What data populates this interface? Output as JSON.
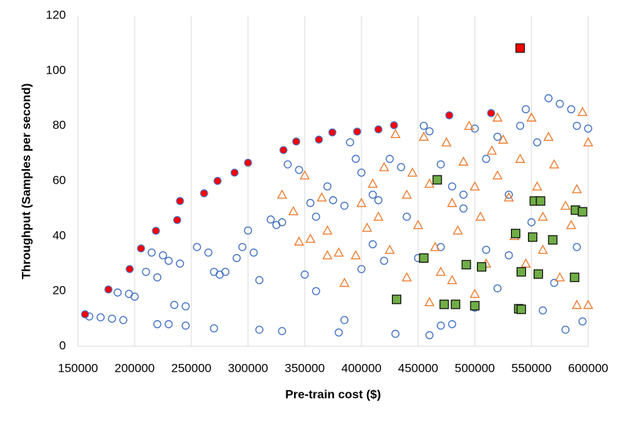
{
  "chart_data": {
    "type": "scatter",
    "x_label": "Pre-train cost ($)",
    "y_label": "Throughput (Samples per second)",
    "xlim": [
      150000,
      600000
    ],
    "xticks": [
      150000,
      200000,
      250000,
      300000,
      350000,
      400000,
      450000,
      500000,
      550000,
      600000
    ],
    "ylim": [
      0,
      120
    ],
    "yticks": [
      0,
      20,
      40,
      60,
      80,
      100,
      120
    ],
    "grid": "x",
    "series": [
      {
        "color": "#4472c4",
        "marker": "circle",
        "filled": false,
        "x": [
          160000,
          170000,
          180000,
          190000,
          185000,
          195000,
          200000,
          210000,
          215000,
          225000,
          220000,
          230000,
          240000,
          235000,
          245000,
          220000,
          230000,
          245000,
          255000,
          265000,
          270000,
          275000,
          280000,
          290000,
          295000,
          300000,
          305000,
          310000,
          320000,
          325000,
          330000,
          335000,
          345000,
          355000,
          360000,
          370000,
          375000,
          385000,
          390000,
          395000,
          400000,
          410000,
          415000,
          420000,
          425000,
          435000,
          440000,
          455000,
          460000,
          470000,
          480000,
          490000,
          500000,
          510000,
          520000,
          530000,
          540000,
          545000,
          555000,
          565000,
          575000,
          585000,
          590000,
          600000,
          460000,
          470000,
          480000,
          500000,
          520000,
          560000,
          580000,
          595000,
          270000,
          310000,
          330000,
          380000,
          385000,
          430000,
          350000,
          360000,
          400000,
          410000,
          450000,
          470000,
          490000,
          510000,
          530000,
          550000,
          570000,
          590000
        ],
        "values": [
          10.8,
          10.5,
          10,
          9.5,
          19.5,
          19,
          18,
          27,
          34,
          33,
          25,
          31,
          30,
          15,
          14.5,
          8,
          8,
          7.5,
          36,
          34,
          27,
          26,
          27,
          32,
          36,
          42,
          34,
          24,
          46,
          44,
          45,
          66,
          64,
          52,
          47,
          58,
          53,
          51,
          74,
          68,
          63,
          55,
          53,
          31,
          68,
          65,
          47,
          80,
          78,
          66,
          58,
          55,
          79,
          68,
          76,
          55,
          80,
          86,
          74,
          90,
          88,
          86,
          80,
          79,
          4,
          7.5,
          8,
          14,
          21,
          13,
          6,
          9,
          6.5,
          6,
          5.5,
          5,
          9.5,
          4.5,
          26,
          20,
          28,
          37,
          32,
          36,
          50,
          35,
          33,
          45,
          23,
          36
        ]
      },
      {
        "color": "#ed7d31",
        "marker": "triangle",
        "filled": false,
        "x": [
          330000,
          340000,
          350000,
          355000,
          365000,
          370000,
          380000,
          385000,
          400000,
          405000,
          410000,
          415000,
          420000,
          425000,
          430000,
          440000,
          445000,
          450000,
          455000,
          460000,
          465000,
          470000,
          475000,
          480000,
          485000,
          490000,
          495000,
          500000,
          505000,
          510000,
          515000,
          520000,
          525000,
          530000,
          535000,
          540000,
          545000,
          550000,
          555000,
          560000,
          565000,
          570000,
          575000,
          580000,
          585000,
          590000,
          595000,
          600000,
          600000,
          590000,
          560000,
          520000,
          480000,
          440000,
          500000,
          460000,
          395000,
          370000,
          345000
        ],
        "values": [
          55,
          49,
          62,
          39,
          54,
          42,
          34,
          23,
          52,
          43,
          59,
          47,
          65,
          35,
          77,
          55,
          63,
          44,
          76,
          59,
          36,
          27,
          74,
          52,
          42,
          67,
          80,
          58,
          47,
          30,
          71,
          62,
          75,
          54,
          40,
          68,
          30,
          83,
          58,
          47,
          76,
          66,
          25,
          51,
          44,
          57,
          85,
          74,
          15,
          15,
          35,
          83,
          24,
          25,
          19,
          16,
          33,
          33,
          38
        ]
      },
      {
        "color": "#ff0000",
        "marker": "circle",
        "filled": true,
        "edgecolor": "#4472c4",
        "x": [
          156250,
          176875,
          195625,
          205625,
          218750,
          237500,
          240000,
          261250,
          273125,
          288125,
          300000,
          331250,
          342500,
          362500,
          374375,
          396250,
          415000,
          428750,
          477500,
          514375
        ],
        "values": [
          11.6,
          20.6,
          28,
          35.5,
          41.9,
          45.8,
          52.7,
          55.5,
          60,
          63,
          66.6,
          71.2,
          74.3,
          75,
          77.6,
          77.9,
          78.7,
          80.2,
          83.8,
          84.6
        ]
      },
      {
        "color": "#70ad47",
        "marker": "square",
        "filled": true,
        "edgecolor": "#000000",
        "x": [
          431000,
          455000,
          473000,
          483000,
          466875,
          492500,
          506000,
          500000,
          536000,
          551000,
          552500,
          558000,
          541000,
          556000,
          568750,
          538750,
          541000,
          588750,
          595000,
          588000
        ],
        "values": [
          17,
          32,
          15.2,
          15.2,
          60.4,
          29.6,
          28.8,
          14.7,
          40.9,
          39.6,
          52.7,
          52.7,
          27,
          26.2,
          38.6,
          13.6,
          13.4,
          49.4,
          48.8,
          25
        ]
      },
      {
        "color": "#ff0000",
        "marker": "square",
        "filled": true,
        "edgecolor": "#000000",
        "x": [
          540000
        ],
        "values": [
          108.2
        ]
      }
    ]
  }
}
